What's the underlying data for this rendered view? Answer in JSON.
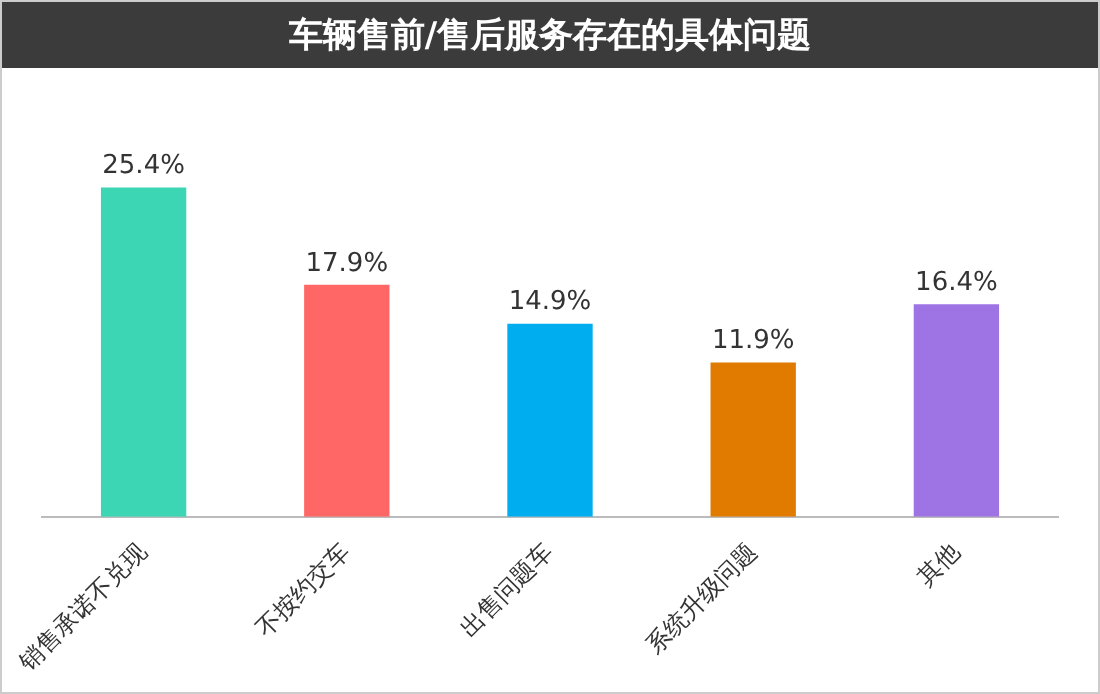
{
  "chart_data": {
    "type": "bar",
    "title": "车辆售前/售后服务存在的具体问题",
    "categories": [
      "销售承诺不兑现",
      "不按约交车",
      "出售问题车",
      "系统升级问题",
      "其他"
    ],
    "values": [
      25.4,
      17.9,
      14.9,
      11.9,
      16.4
    ],
    "colors": [
      "#3dd6b5",
      "#ff6666",
      "#00aeef",
      "#e07b00",
      "#9e73e3"
    ],
    "value_labels": [
      "25.4%",
      "17.9%",
      "14.9%",
      "11.9%",
      "16.4%"
    ],
    "grid": false,
    "legend": false
  }
}
